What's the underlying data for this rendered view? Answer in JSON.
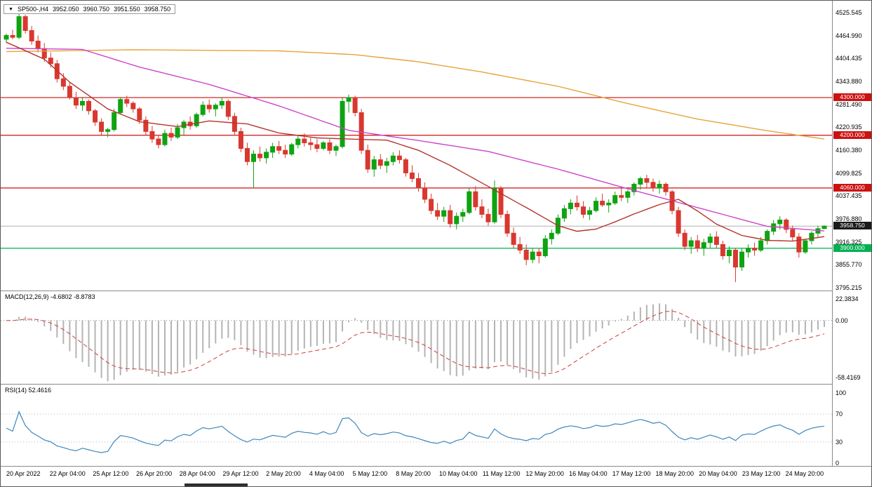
{
  "title_bar": {
    "symbol_period": "SP500-,H4",
    "open": "3952.050",
    "high": "3960.750",
    "low": "3951.550",
    "close": "3958.750"
  },
  "colors": {
    "up": "#0fa312",
    "down": "#d8382f",
    "ma_slow": "#e8a33d",
    "ma_mid": "#cc44cc",
    "ma_fast": "#b5342c",
    "hline_red": "#cc1111",
    "hline_green": "#00b050",
    "bid_line": "#b0b0b0",
    "bid_label_bg": "#1a1a1a",
    "macd_hist": "#b4b4b4",
    "macd_signal": "#cf3d3d",
    "rsi_line": "#3e87bb",
    "level_dotted": "#b5b5b5",
    "grid_border": "#8a8a8a"
  },
  "price_axis": {
    "top_value": 4525.545,
    "bottom_value": 3795.215,
    "labels": [
      "4525.545",
      "4464.990",
      "4404.435",
      "4343.880",
      "4281.490",
      "4220.935",
      "4160.380",
      "4099.825",
      "4037.435",
      "3976.880",
      "3916.325",
      "3855.770",
      "3795.215"
    ]
  },
  "hlines": [
    {
      "value": 4300.0,
      "label": "4300.000",
      "color": "red"
    },
    {
      "value": 4200.0,
      "label": "4200.000",
      "color": "red"
    },
    {
      "value": 4060.0,
      "label": "4060.000",
      "color": "red"
    },
    {
      "value": 3900.0,
      "label": "3900.000",
      "color": "green"
    }
  ],
  "bid": {
    "value": 3958.75,
    "label": "3958.750"
  },
  "time_axis": {
    "labels": [
      "20 Apr 2022",
      "22 Apr 04:00",
      "25 Apr 12:00",
      "26 Apr 20:00",
      "28 Apr 04:00",
      "29 Apr 12:00",
      "2 May 20:00",
      "4 May 04:00",
      "5 May 12:00",
      "8 May 20:00",
      "10 May 04:00",
      "11 May 12:00",
      "12 May 20:00",
      "16 May 04:00",
      "17 May 12:00",
      "18 May 20:00",
      "20 May 04:00",
      "23 May 12:00",
      "24 May 20:00"
    ]
  },
  "indicators": {
    "macd": {
      "label": "MACD(12,26,9) -4.6802 -8.8783",
      "fast": 12,
      "slow": 26,
      "signal": 9,
      "current_macd": -4.6802,
      "current_signal": -8.8783,
      "axis_labels": [
        "22.3834",
        "0.00",
        "-58.4169"
      ],
      "axis_values": [
        22.3834,
        0,
        -58.4169
      ],
      "range": [
        -65,
        30
      ]
    },
    "rsi": {
      "label": "RSI(14) 52.4616",
      "period": 14,
      "current": 52.4616,
      "axis_labels": [
        "100",
        "70",
        "30",
        "0"
      ],
      "axis_values": [
        100,
        70,
        30,
        0
      ],
      "levels": [
        30,
        70
      ]
    }
  },
  "chart_data": {
    "type": "candlestick",
    "symbol": "SP500-",
    "timeframe": "H4",
    "title": "SP500-,H4 3952.050 3960.750 3951.550 3958.750",
    "ylim": [
      3795.215,
      4525.545
    ],
    "legend_position": "none",
    "grid": false,
    "ohlc": [
      [
        4455,
        4470,
        4445,
        4465
      ],
      [
        4465,
        4480,
        4455,
        4460
      ],
      [
        4460,
        4525,
        4455,
        4515
      ],
      [
        4515,
        4520,
        4470,
        4478
      ],
      [
        4478,
        4490,
        4440,
        4450
      ],
      [
        4450,
        4465,
        4420,
        4430
      ],
      [
        4430,
        4445,
        4395,
        4405
      ],
      [
        4405,
        4420,
        4380,
        4390
      ],
      [
        4390,
        4400,
        4340,
        4350
      ],
      [
        4350,
        4365,
        4320,
        4330
      ],
      [
        4330,
        4340,
        4295,
        4300
      ],
      [
        4300,
        4315,
        4270,
        4280
      ],
      [
        4280,
        4300,
        4265,
        4290
      ],
      [
        4290,
        4295,
        4255,
        4265
      ],
      [
        4265,
        4270,
        4225,
        4235
      ],
      [
        4235,
        4245,
        4200,
        4210
      ],
      [
        4210,
        4220,
        4195,
        4215
      ],
      [
        4215,
        4270,
        4210,
        4260
      ],
      [
        4260,
        4300,
        4255,
        4295
      ],
      [
        4295,
        4305,
        4275,
        4285
      ],
      [
        4285,
        4290,
        4260,
        4270
      ],
      [
        4270,
        4275,
        4230,
        4240
      ],
      [
        4240,
        4250,
        4200,
        4210
      ],
      [
        4210,
        4225,
        4180,
        4190
      ],
      [
        4190,
        4200,
        4165,
        4175
      ],
      [
        4175,
        4215,
        4170,
        4205
      ],
      [
        4205,
        4220,
        4185,
        4195
      ],
      [
        4195,
        4230,
        4190,
        4220
      ],
      [
        4220,
        4240,
        4200,
        4235
      ],
      [
        4235,
        4250,
        4215,
        4225
      ],
      [
        4225,
        4260,
        4220,
        4255
      ],
      [
        4255,
        4290,
        4250,
        4280
      ],
      [
        4280,
        4295,
        4260,
        4270
      ],
      [
        4270,
        4285,
        4250,
        4280
      ],
      [
        4280,
        4300,
        4270,
        4290
      ],
      [
        4290,
        4295,
        4240,
        4250
      ],
      [
        4250,
        4260,
        4200,
        4210
      ],
      [
        4210,
        4220,
        4155,
        4165
      ],
      [
        4165,
        4180,
        4120,
        4130
      ],
      [
        4130,
        4160,
        4060,
        4150
      ],
      [
        4150,
        4170,
        4130,
        4140
      ],
      [
        4140,
        4165,
        4125,
        4155
      ],
      [
        4155,
        4180,
        4140,
        4170
      ],
      [
        4170,
        4185,
        4150,
        4160
      ],
      [
        4160,
        4175,
        4140,
        4150
      ],
      [
        4150,
        4180,
        4145,
        4175
      ],
      [
        4175,
        4200,
        4165,
        4190
      ],
      [
        4190,
        4205,
        4170,
        4180
      ],
      [
        4180,
        4195,
        4160,
        4175
      ],
      [
        4175,
        4190,
        4155,
        4165
      ],
      [
        4165,
        4185,
        4160,
        4180
      ],
      [
        4180,
        4190,
        4150,
        4160
      ],
      [
        4160,
        4175,
        4145,
        4170
      ],
      [
        4170,
        4300,
        4165,
        4290
      ],
      [
        4290,
        4308,
        4260,
        4300
      ],
      [
        4300,
        4305,
        4250,
        4260
      ],
      [
        4260,
        4270,
        4150,
        4160
      ],
      [
        4160,
        4175,
        4100,
        4110
      ],
      [
        4110,
        4145,
        4090,
        4135
      ],
      [
        4135,
        4150,
        4110,
        4120
      ],
      [
        4120,
        4140,
        4100,
        4130
      ],
      [
        4130,
        4155,
        4120,
        4145
      ],
      [
        4145,
        4160,
        4125,
        4135
      ],
      [
        4135,
        4140,
        4090,
        4100
      ],
      [
        4100,
        4120,
        4075,
        4085
      ],
      [
        4085,
        4100,
        4050,
        4060
      ],
      [
        4060,
        4075,
        4020,
        4030
      ],
      [
        4030,
        4045,
        3990,
        4000
      ],
      [
        4000,
        4020,
        3975,
        3985
      ],
      [
        3985,
        4010,
        3970,
        4000
      ],
      [
        4000,
        4015,
        3955,
        3965
      ],
      [
        3965,
        3995,
        3950,
        3985
      ],
      [
        3985,
        4005,
        3970,
        3995
      ],
      [
        3995,
        4060,
        3990,
        4050
      ],
      [
        4050,
        4065,
        4000,
        4010
      ],
      [
        4010,
        4030,
        3980,
        3990
      ],
      [
        3990,
        4005,
        3960,
        3970
      ],
      [
        3970,
        4080,
        3965,
        4060
      ],
      [
        4060,
        4065,
        3980,
        3990
      ],
      [
        3990,
        4000,
        3930,
        3940
      ],
      [
        3940,
        3955,
        3900,
        3910
      ],
      [
        3910,
        3930,
        3885,
        3895
      ],
      [
        3895,
        3910,
        3855,
        3870
      ],
      [
        3870,
        3900,
        3860,
        3890
      ],
      [
        3890,
        3900,
        3860,
        3880
      ],
      [
        3880,
        3935,
        3875,
        3925
      ],
      [
        3925,
        3950,
        3910,
        3940
      ],
      [
        3940,
        3990,
        3935,
        3980
      ],
      [
        3980,
        4015,
        3970,
        4005
      ],
      [
        4005,
        4030,
        3990,
        4020
      ],
      [
        4020,
        4040,
        4000,
        4010
      ],
      [
        4010,
        4025,
        3980,
        3990
      ],
      [
        3990,
        4010,
        3975,
        4000
      ],
      [
        4000,
        4035,
        3995,
        4025
      ],
      [
        4025,
        4045,
        4010,
        4015
      ],
      [
        4015,
        4030,
        3995,
        4020
      ],
      [
        4020,
        4050,
        4015,
        4040
      ],
      [
        4040,
        4060,
        4025,
        4035
      ],
      [
        4035,
        4055,
        4020,
        4050
      ],
      [
        4050,
        4075,
        4040,
        4070
      ],
      [
        4070,
        4090,
        4055,
        4085
      ],
      [
        4085,
        4095,
        4060,
        4075
      ],
      [
        4075,
        4085,
        4050,
        4060
      ],
      [
        4060,
        4080,
        4045,
        4070
      ],
      [
        4070,
        4075,
        4040,
        4050
      ],
      [
        4050,
        4055,
        3990,
        4000
      ],
      [
        4000,
        4010,
        3930,
        3940
      ],
      [
        3940,
        3950,
        3895,
        3905
      ],
      [
        3905,
        3930,
        3885,
        3920
      ],
      [
        3920,
        3935,
        3890,
        3900
      ],
      [
        3900,
        3925,
        3880,
        3915
      ],
      [
        3915,
        3940,
        3900,
        3930
      ],
      [
        3930,
        3945,
        3900,
        3910
      ],
      [
        3910,
        3920,
        3870,
        3880
      ],
      [
        3880,
        3905,
        3860,
        3895
      ],
      [
        3895,
        3900,
        3810,
        3850
      ],
      [
        3850,
        3900,
        3840,
        3890
      ],
      [
        3890,
        3910,
        3875,
        3900
      ],
      [
        3900,
        3915,
        3880,
        3895
      ],
      [
        3895,
        3930,
        3890,
        3920
      ],
      [
        3920,
        3950,
        3910,
        3945
      ],
      [
        3945,
        3975,
        3935,
        3965
      ],
      [
        3965,
        3985,
        3950,
        3975
      ],
      [
        3975,
        3980,
        3940,
        3950
      ],
      [
        3950,
        3960,
        3920,
        3930
      ],
      [
        3930,
        3940,
        3875,
        3890
      ],
      [
        3890,
        3925,
        3885,
        3920
      ],
      [
        3920,
        3945,
        3910,
        3940
      ],
      [
        3940,
        3960,
        3930,
        3952
      ],
      [
        3952.05,
        3960.75,
        3951.55,
        3958.75
      ]
    ],
    "moving_averages": [
      {
        "name": "ma-slow",
        "color_key": "ma_slow",
        "points": [
          [
            0,
            4422
          ],
          [
            20,
            4427
          ],
          [
            43,
            4424
          ],
          [
            55,
            4414
          ],
          [
            65,
            4395
          ],
          [
            75,
            4368
          ],
          [
            87,
            4330
          ],
          [
            98,
            4284
          ],
          [
            109,
            4243
          ],
          [
            120,
            4212
          ],
          [
            129,
            4190
          ]
        ]
      },
      {
        "name": "ma-mid",
        "color_key": "ma_mid",
        "points": [
          [
            0,
            4431
          ],
          [
            12,
            4428
          ],
          [
            21,
            4381
          ],
          [
            32,
            4335
          ],
          [
            43,
            4278
          ],
          [
            54,
            4213
          ],
          [
            65,
            4186
          ],
          [
            76,
            4157
          ],
          [
            87,
            4110
          ],
          [
            98,
            4058
          ],
          [
            109,
            4008
          ],
          [
            120,
            3958
          ],
          [
            129,
            3946
          ]
        ]
      },
      {
        "name": "ma-fast",
        "color_key": "ma_fast",
        "points": [
          [
            0,
            4447
          ],
          [
            6,
            4402
          ],
          [
            10,
            4341
          ],
          [
            16,
            4270
          ],
          [
            21,
            4236
          ],
          [
            27,
            4223
          ],
          [
            32,
            4238
          ],
          [
            38,
            4230
          ],
          [
            43,
            4206
          ],
          [
            49,
            4193
          ],
          [
            54,
            4190
          ],
          [
            60,
            4187
          ],
          [
            65,
            4160
          ],
          [
            70,
            4120
          ],
          [
            76,
            4064
          ],
          [
            82,
            4008
          ],
          [
            87,
            3960
          ],
          [
            90,
            3945
          ],
          [
            93,
            3951
          ],
          [
            96,
            3970
          ],
          [
            99,
            3991
          ],
          [
            103,
            4016
          ],
          [
            106,
            4030
          ],
          [
            109,
            3999
          ],
          [
            112,
            3964
          ],
          [
            116,
            3934
          ],
          [
            120,
            3921
          ],
          [
            124,
            3919
          ],
          [
            127,
            3926
          ],
          [
            129,
            3931
          ]
        ]
      }
    ]
  }
}
